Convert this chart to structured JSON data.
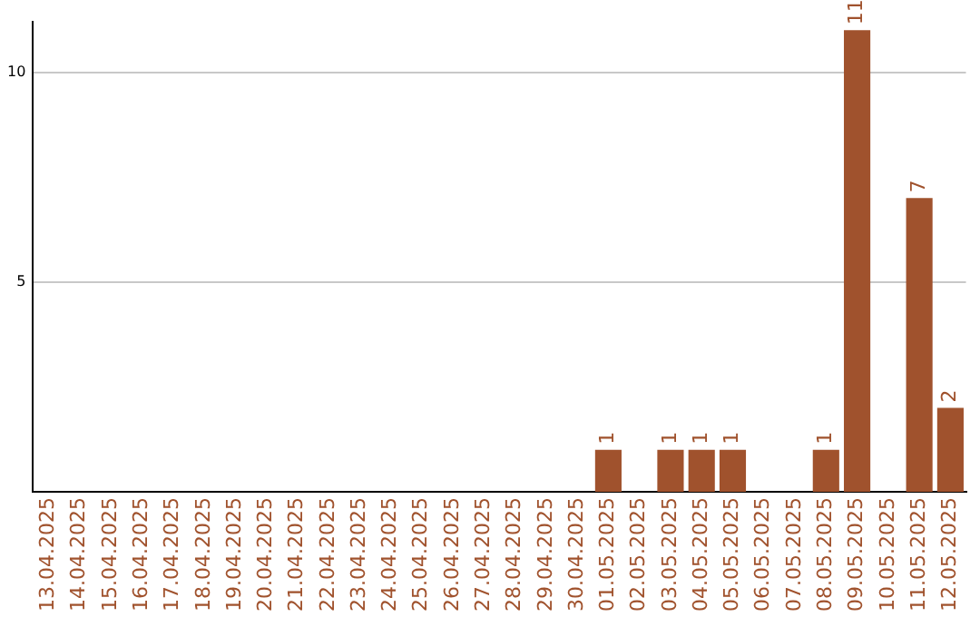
{
  "chart_data": {
    "type": "bar",
    "categories": [
      "13.04.2025",
      "14.04.2025",
      "15.04.2025",
      "16.04.2025",
      "17.04.2025",
      "18.04.2025",
      "19.04.2025",
      "20.04.2025",
      "21.04.2025",
      "22.04.2025",
      "23.04.2025",
      "24.04.2025",
      "25.04.2025",
      "26.04.2025",
      "27.04.2025",
      "28.04.2025",
      "29.04.2025",
      "30.04.2025",
      "01.05.2025",
      "02.05.2025",
      "03.05.2025",
      "04.05.2025",
      "05.05.2025",
      "06.05.2025",
      "07.05.2025",
      "08.05.2025",
      "09.05.2025",
      "10.05.2025",
      "11.05.2025",
      "12.05.2025"
    ],
    "values": [
      0,
      0,
      0,
      0,
      0,
      0,
      0,
      0,
      0,
      0,
      0,
      0,
      0,
      0,
      0,
      0,
      0,
      0,
      1,
      0,
      1,
      1,
      1,
      0,
      0,
      1,
      11,
      0,
      7,
      2
    ],
    "value_labels": [
      null,
      null,
      null,
      null,
      null,
      null,
      null,
      null,
      null,
      null,
      null,
      null,
      null,
      null,
      null,
      null,
      null,
      null,
      "1",
      null,
      "1",
      "1",
      "1",
      null,
      null,
      "1",
      "11",
      null,
      "7",
      "2"
    ],
    "color": "#a0522d",
    "ylim": [
      0,
      11.2
    ],
    "yticks": [
      5,
      10
    ],
    "grid": "y"
  }
}
